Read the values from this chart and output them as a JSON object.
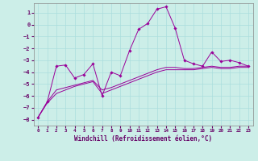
{
  "xlabel": "Windchill (Refroidissement éolien,°C)",
  "background_color": "#cceee8",
  "grid_color": "#aadddd",
  "line_color": "#990099",
  "xlim": [
    -0.5,
    23.5
  ],
  "ylim": [
    -8.5,
    1.8
  ],
  "xticks": [
    0,
    1,
    2,
    3,
    4,
    5,
    6,
    7,
    8,
    9,
    10,
    11,
    12,
    13,
    14,
    15,
    16,
    17,
    18,
    19,
    20,
    21,
    22,
    23
  ],
  "yticks": [
    -8,
    -7,
    -6,
    -5,
    -4,
    -3,
    -2,
    -1,
    0,
    1
  ],
  "series1_x": [
    0,
    1,
    2,
    3,
    4,
    5,
    6,
    7,
    8,
    9,
    10,
    11,
    12,
    13,
    14,
    15,
    16,
    17,
    18,
    19,
    20,
    21,
    22,
    23
  ],
  "series1_y": [
    -7.8,
    -6.5,
    -3.5,
    -3.4,
    -4.5,
    -4.2,
    -3.3,
    -6.0,
    -4.0,
    -4.3,
    -2.2,
    -0.4,
    0.1,
    1.3,
    1.5,
    -0.3,
    -3.0,
    -3.3,
    -3.5,
    -2.3,
    -3.1,
    -3.0,
    -3.2,
    -3.5
  ],
  "series2_x": [
    0,
    1,
    2,
    3,
    4,
    5,
    6,
    7,
    8,
    9,
    10,
    11,
    12,
    13,
    14,
    15,
    16,
    17,
    18,
    19,
    20,
    21,
    22,
    23
  ],
  "series2_y": [
    -7.8,
    -6.5,
    -5.5,
    -5.3,
    -5.1,
    -4.9,
    -4.7,
    -5.5,
    -5.3,
    -5.0,
    -4.7,
    -4.4,
    -4.1,
    -3.8,
    -3.6,
    -3.6,
    -3.7,
    -3.7,
    -3.6,
    -3.5,
    -3.6,
    -3.6,
    -3.5,
    -3.5
  ],
  "series3_x": [
    0,
    1,
    2,
    3,
    4,
    5,
    6,
    7,
    8,
    9,
    10,
    11,
    12,
    13,
    14,
    15,
    16,
    17,
    18,
    19,
    20,
    21,
    22,
    23
  ],
  "series3_y": [
    -7.8,
    -6.6,
    -5.8,
    -5.5,
    -5.2,
    -5.0,
    -4.8,
    -5.8,
    -5.5,
    -5.2,
    -4.9,
    -4.6,
    -4.3,
    -4.0,
    -3.8,
    -3.8,
    -3.8,
    -3.8,
    -3.7,
    -3.6,
    -3.7,
    -3.7,
    -3.6,
    -3.6
  ]
}
